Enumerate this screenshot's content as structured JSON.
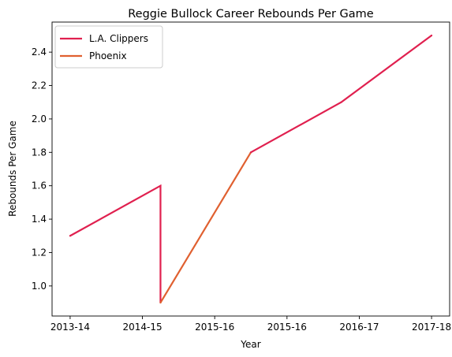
{
  "chart_data": {
    "type": "line",
    "title": "Reggie Bullock Career Rebounds Per Game",
    "xlabel": "Year",
    "ylabel": "Rebounds Per Game",
    "x_tick_labels": [
      "2013-14",
      "2014-15",
      "2015-16",
      "2015-16",
      "2016-17",
      "2017-18"
    ],
    "y_ticks": [
      1.0,
      1.2,
      1.4,
      1.6,
      1.8,
      2.0,
      2.2,
      2.4
    ],
    "ylim": [
      0.82,
      2.58
    ],
    "grid": false,
    "legend_position": "top-left",
    "series": [
      {
        "name": "L.A. Clippers",
        "color": "#e0204f",
        "points": [
          {
            "x": 0,
            "y": 1.3
          },
          {
            "x": 1.25,
            "y": 1.6
          },
          {
            "x": 1.25,
            "y": 0.9
          }
        ]
      },
      {
        "name": "Phoenix",
        "color": "#e06030",
        "points": [
          {
            "x": 1.25,
            "y": 0.9
          },
          {
            "x": 2.5,
            "y": 1.8
          }
        ]
      },
      {
        "name": "L.A. Clippers",
        "color": "#e0204f",
        "legend": false,
        "points": [
          {
            "x": 2.5,
            "y": 1.8
          },
          {
            "x": 3.75,
            "y": 2.1
          },
          {
            "x": 5,
            "y": 2.5
          }
        ]
      }
    ]
  }
}
